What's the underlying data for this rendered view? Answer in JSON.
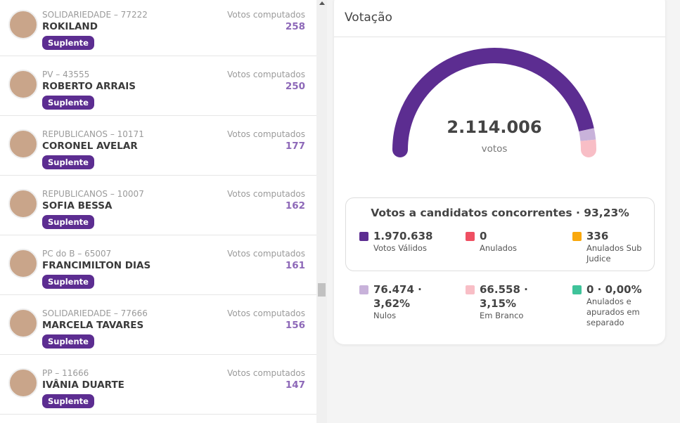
{
  "candidates": [
    {
      "party": "SOLIDARIEDADE – 77222",
      "name": "ROKILAND",
      "votes_label": "Votos computados",
      "votes": 258,
      "status": "Suplente"
    },
    {
      "party": "PV – 43555",
      "name": "ROBERTO ARRAIS",
      "votes_label": "Votos computados",
      "votes": 250,
      "status": "Suplente"
    },
    {
      "party": "REPUBLICANOS – 10171",
      "name": "CORONEL AVELAR",
      "votes_label": "Votos computados",
      "votes": 177,
      "status": "Suplente"
    },
    {
      "party": "REPUBLICANOS – 10007",
      "name": "SOFIA BESSA",
      "votes_label": "Votos computados",
      "votes": 162,
      "status": "Suplente"
    },
    {
      "party": "PC do B – 65007",
      "name": "FRANCIMILTON DIAS",
      "votes_label": "Votos computados",
      "votes": 161,
      "status": "Suplente"
    },
    {
      "party": "SOLIDARIEDADE – 77666",
      "name": "MARCELA TAVARES",
      "votes_label": "Votos computados",
      "votes": 156,
      "status": "Suplente"
    },
    {
      "party": "PP – 11666",
      "name": "IVÂNIA DUARTE",
      "votes_label": "Votos computados",
      "votes": 147,
      "status": "Suplente"
    }
  ],
  "panel": {
    "title": "Votação",
    "total": "2.114.006",
    "total_unit": "votos",
    "box_title": "Votos a candidatos concorrentes · 93,23%",
    "items": [
      {
        "value": {
          "value": 1970638,
          "label": "1.970.638"
        },
        "label": "Votos Válidos",
        "color": "#5c2d91"
      },
      {
        "value": {
          "value": 0,
          "label": "0"
        },
        "label": "Anulados",
        "color": "#ef4f62"
      },
      {
        "value": {
          "value": 336,
          "label": "336"
        },
        "label": "Anulados Sub Judice",
        "color": "#f9a80d"
      },
      {
        "value": {
          "value": 76474,
          "label": "76.474 · 3,62%"
        },
        "label": "Nulos",
        "color": "#c8b2da"
      },
      {
        "value": {
          "value": 66558,
          "label": "66.558 · 3,15%"
        },
        "label": "Em Branco",
        "color": "#f8bec6"
      },
      {
        "value": {
          "value": 0,
          "label": "0 · 0,00%"
        },
        "label": "Anulados e apurados em separado",
        "color": "#3fc39a"
      }
    ]
  }
}
